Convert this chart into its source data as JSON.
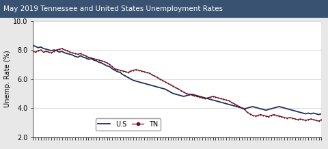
{
  "title": "May 2019 Tennessee and United States Unemployment Rates",
  "title_bg_color": "#3a5272",
  "title_text_color": "#ffffff",
  "ylabel": "Unemp. Rate (%)",
  "ylim": [
    2.0,
    10.0
  ],
  "yticks": [
    2.0,
    4.0,
    6.0,
    8.0,
    10.0
  ],
  "us_color": "#1f2d5a",
  "tn_color": "#6b0d1a",
  "us_label": "U.S",
  "tn_label": "TN",
  "fig_bg_color": "#e8e8e8",
  "plot_bg_color": "#ffffff",
  "us_data": [
    8.3,
    8.25,
    8.15,
    8.2,
    8.1,
    8.05,
    8.0,
    7.95,
    8.0,
    7.95,
    7.85,
    7.9,
    7.8,
    7.75,
    7.7,
    7.65,
    7.55,
    7.5,
    7.6,
    7.5,
    7.45,
    7.35,
    7.4,
    7.3,
    7.25,
    7.15,
    7.1,
    7.0,
    6.9,
    6.85,
    6.7,
    6.6,
    6.5,
    6.45,
    6.3,
    6.2,
    6.1,
    6.0,
    5.9,
    5.85,
    5.8,
    5.75,
    5.7,
    5.65,
    5.6,
    5.55,
    5.5,
    5.45,
    5.4,
    5.35,
    5.3,
    5.2,
    5.1,
    5.0,
    4.95,
    4.9,
    4.85,
    4.8,
    4.85,
    4.9,
    4.95,
    4.9,
    4.85,
    4.8,
    4.75,
    4.7,
    4.65,
    4.6,
    4.55,
    4.5,
    4.45,
    4.4,
    4.35,
    4.3,
    4.25,
    4.2,
    4.15,
    4.1,
    4.05,
    4.0,
    3.95,
    4.0,
    4.05,
    4.1,
    4.05,
    4.0,
    3.95,
    3.9,
    3.85,
    3.9,
    3.95,
    4.0,
    4.05,
    4.1,
    4.05,
    4.0,
    3.95,
    3.9,
    3.85,
    3.8,
    3.75,
    3.7,
    3.65,
    3.6,
    3.65,
    3.6,
    3.65,
    3.6,
    3.55,
    3.6
  ],
  "tn_data": [
    7.9,
    7.85,
    7.95,
    8.0,
    7.85,
    7.9,
    7.85,
    7.8,
    7.9,
    8.0,
    8.05,
    8.1,
    8.0,
    7.95,
    7.85,
    7.8,
    7.75,
    7.7,
    7.75,
    7.65,
    7.6,
    7.5,
    7.45,
    7.4,
    7.35,
    7.3,
    7.25,
    7.2,
    7.1,
    7.0,
    6.85,
    6.7,
    6.65,
    6.6,
    6.55,
    6.5,
    6.45,
    6.55,
    6.6,
    6.65,
    6.6,
    6.55,
    6.5,
    6.45,
    6.4,
    6.3,
    6.2,
    6.1,
    6.0,
    5.9,
    5.8,
    5.7,
    5.6,
    5.5,
    5.4,
    5.3,
    5.2,
    5.1,
    5.0,
    4.95,
    4.9,
    4.85,
    4.8,
    4.75,
    4.7,
    4.65,
    4.7,
    4.75,
    4.8,
    4.75,
    4.7,
    4.65,
    4.6,
    4.55,
    4.5,
    4.4,
    4.3,
    4.2,
    4.1,
    4.0,
    3.9,
    3.7,
    3.6,
    3.5,
    3.45,
    3.5,
    3.55,
    3.5,
    3.45,
    3.4,
    3.5,
    3.55,
    3.5,
    3.45,
    3.4,
    3.35,
    3.3,
    3.35,
    3.3,
    3.25,
    3.2,
    3.25,
    3.2,
    3.15,
    3.2,
    3.25,
    3.2,
    3.15,
    3.1,
    3.2
  ]
}
